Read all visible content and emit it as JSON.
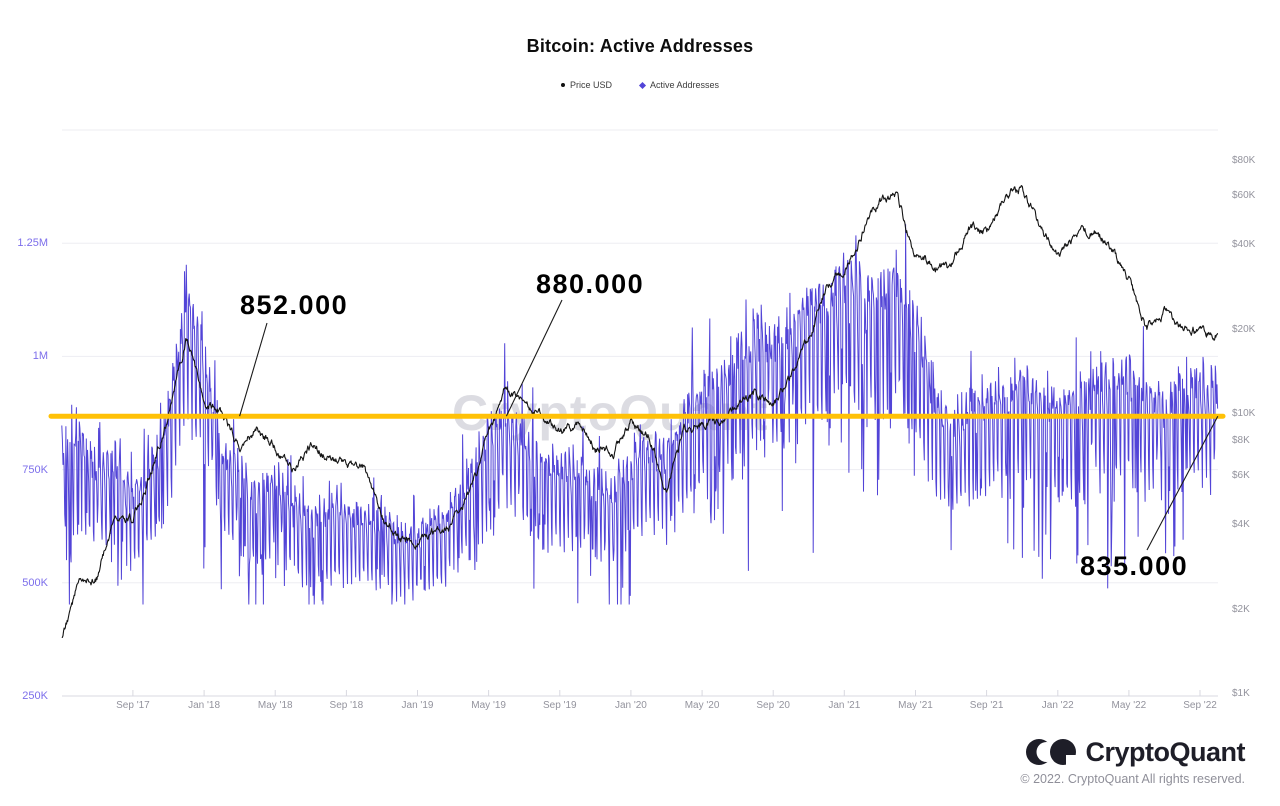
{
  "title": "Bitcoin: Active Addresses",
  "legend": [
    {
      "label": "Price USD",
      "color": "#141414",
      "marker": "circle"
    },
    {
      "label": "Active Addresses",
      "color": "#5244D7",
      "marker": "diamond"
    }
  ],
  "watermark": "CryptoQuant",
  "annotations": [
    {
      "label": "852.000",
      "value": 852000,
      "anchor_month": "2018-03"
    },
    {
      "label": "880.000",
      "value": 880000,
      "anchor_month": "2019-06"
    },
    {
      "label": "835.000",
      "value": 835000,
      "anchor_month": "2022-10"
    }
  ],
  "footer": {
    "brand": "CryptoQuant",
    "copyright": "© 2022. CryptoQuant All rights reserved."
  },
  "chart_data": {
    "type": "line",
    "title": "Bitcoin: Active Addresses",
    "x_range": [
      "2017-05",
      "2022-10"
    ],
    "x_monthly": [
      "2017-05",
      "2017-06",
      "2017-07",
      "2017-08",
      "2017-09",
      "2017-10",
      "2017-11",
      "2017-12",
      "2018-01",
      "2018-02",
      "2018-03",
      "2018-04",
      "2018-05",
      "2018-06",
      "2018-07",
      "2018-08",
      "2018-09",
      "2018-10",
      "2018-11",
      "2018-12",
      "2019-01",
      "2019-02",
      "2019-03",
      "2019-04",
      "2019-05",
      "2019-06",
      "2019-07",
      "2019-08",
      "2019-09",
      "2019-10",
      "2019-11",
      "2019-12",
      "2020-01",
      "2020-02",
      "2020-03",
      "2020-04",
      "2020-05",
      "2020-06",
      "2020-07",
      "2020-08",
      "2020-09",
      "2020-10",
      "2020-11",
      "2020-12",
      "2021-01",
      "2021-02",
      "2021-03",
      "2021-04",
      "2021-05",
      "2021-06",
      "2021-07",
      "2021-08",
      "2021-09",
      "2021-10",
      "2021-11",
      "2021-12",
      "2022-01",
      "2022-02",
      "2022-03",
      "2022-04",
      "2022-05",
      "2022-06",
      "2022-07",
      "2022-08",
      "2022-09",
      "2022-10"
    ],
    "series": [
      {
        "name": "Price USD",
        "axis": "right",
        "color": "#141414",
        "unit": "USD",
        "values": [
          1600,
          2500,
          2600,
          4300,
          4200,
          6100,
          9900,
          19000,
          11200,
          10300,
          7600,
          8900,
          7600,
          6300,
          7700,
          7000,
          6600,
          6400,
          4300,
          3500,
          3500,
          3800,
          4100,
          5300,
          8500,
          12500,
          10500,
          10200,
          8400,
          9200,
          7600,
          7200,
          9300,
          8600,
          5300,
          8800,
          9500,
          9100,
          11100,
          11700,
          10800,
          13500,
          19000,
          28000,
          33000,
          45000,
          58000,
          59000,
          36000,
          34000,
          33000,
          47000,
          44000,
          61000,
          64000,
          47000,
          37000,
          42000,
          46000,
          39000,
          30000,
          20000,
          23000,
          20500,
          19500,
          19600
        ]
      },
      {
        "name": "Active Addresses",
        "axis": "left",
        "color": "#5244D7",
        "unit": "addresses",
        "values": [
          800000,
          830000,
          760000,
          780000,
          700000,
          760000,
          880000,
          1150000,
          1000000,
          800000,
          750000,
          700000,
          740000,
          680000,
          650000,
          670000,
          650000,
          660000,
          650000,
          600000,
          620000,
          640000,
          680000,
          750000,
          830000,
          880000,
          830000,
          780000,
          760000,
          760000,
          720000,
          710000,
          780000,
          810000,
          790000,
          880000,
          930000,
          950000,
          1000000,
          1060000,
          1050000,
          1080000,
          1130000,
          1130000,
          1190000,
          1150000,
          1160000,
          1180000,
          1100000,
          930000,
          850000,
          900000,
          910000,
          930000,
          950000,
          920000,
          910000,
          900000,
          950000,
          960000,
          970000,
          920000,
          900000,
          950000,
          960000,
          920000
        ],
        "note": "daily series is highly volatile: weekly dips of 15-35% below the monthly mean, all-time peak ~1,290,000 in Dec 2017"
      }
    ],
    "left_axis": {
      "scale": "linear",
      "range": [
        250000,
        1500000
      ],
      "label_color": "#7C6EEB",
      "ticks": [
        {
          "value": 250000,
          "label": "250K"
        },
        {
          "value": 500000,
          "label": "500K"
        },
        {
          "value": 750000,
          "label": "750K"
        },
        {
          "value": 1000000,
          "label": "1M"
        },
        {
          "value": 1250000,
          "label": "1.25M"
        }
      ]
    },
    "right_axis": {
      "scale": "log",
      "range": [
        1000,
        100000
      ],
      "label_color": "#93939d",
      "ticks": [
        {
          "value": 1000,
          "label": "$1K"
        },
        {
          "value": 2000,
          "label": "$2K"
        },
        {
          "value": 4000,
          "label": "$4K"
        },
        {
          "value": 6000,
          "label": "$6K"
        },
        {
          "value": 8000,
          "label": "$8K"
        },
        {
          "value": 10000,
          "label": "$10K"
        },
        {
          "value": 20000,
          "label": "$20K"
        },
        {
          "value": 40000,
          "label": "$40K"
        },
        {
          "value": 60000,
          "label": "$60K"
        },
        {
          "value": 80000,
          "label": "$80K"
        }
      ]
    },
    "x_axis": {
      "ticks": [
        {
          "month": "2017-09",
          "label": "Sep '17"
        },
        {
          "month": "2018-01",
          "label": "Jan '18"
        },
        {
          "month": "2018-05",
          "label": "May '18"
        },
        {
          "month": "2018-09",
          "label": "Sep '18"
        },
        {
          "month": "2019-01",
          "label": "Jan '19"
        },
        {
          "month": "2019-05",
          "label": "May '19"
        },
        {
          "month": "2019-09",
          "label": "Sep '19"
        },
        {
          "month": "2020-01",
          "label": "Jan '20"
        },
        {
          "month": "2020-05",
          "label": "May '20"
        },
        {
          "month": "2020-09",
          "label": "Sep '20"
        },
        {
          "month": "2021-01",
          "label": "Jan '21"
        },
        {
          "month": "2021-05",
          "label": "May '21"
        },
        {
          "month": "2021-09",
          "label": "Sep '21"
        },
        {
          "month": "2022-01",
          "label": "Jan '22"
        },
        {
          "month": "2022-05",
          "label": "May '22"
        },
        {
          "month": "2022-09",
          "label": "Sep '22"
        }
      ]
    },
    "support_line": {
      "value": 868000,
      "color": "#FFC107",
      "style": "thick horizontal"
    },
    "grid": "horizontal-only",
    "legend_position": "top-center"
  }
}
